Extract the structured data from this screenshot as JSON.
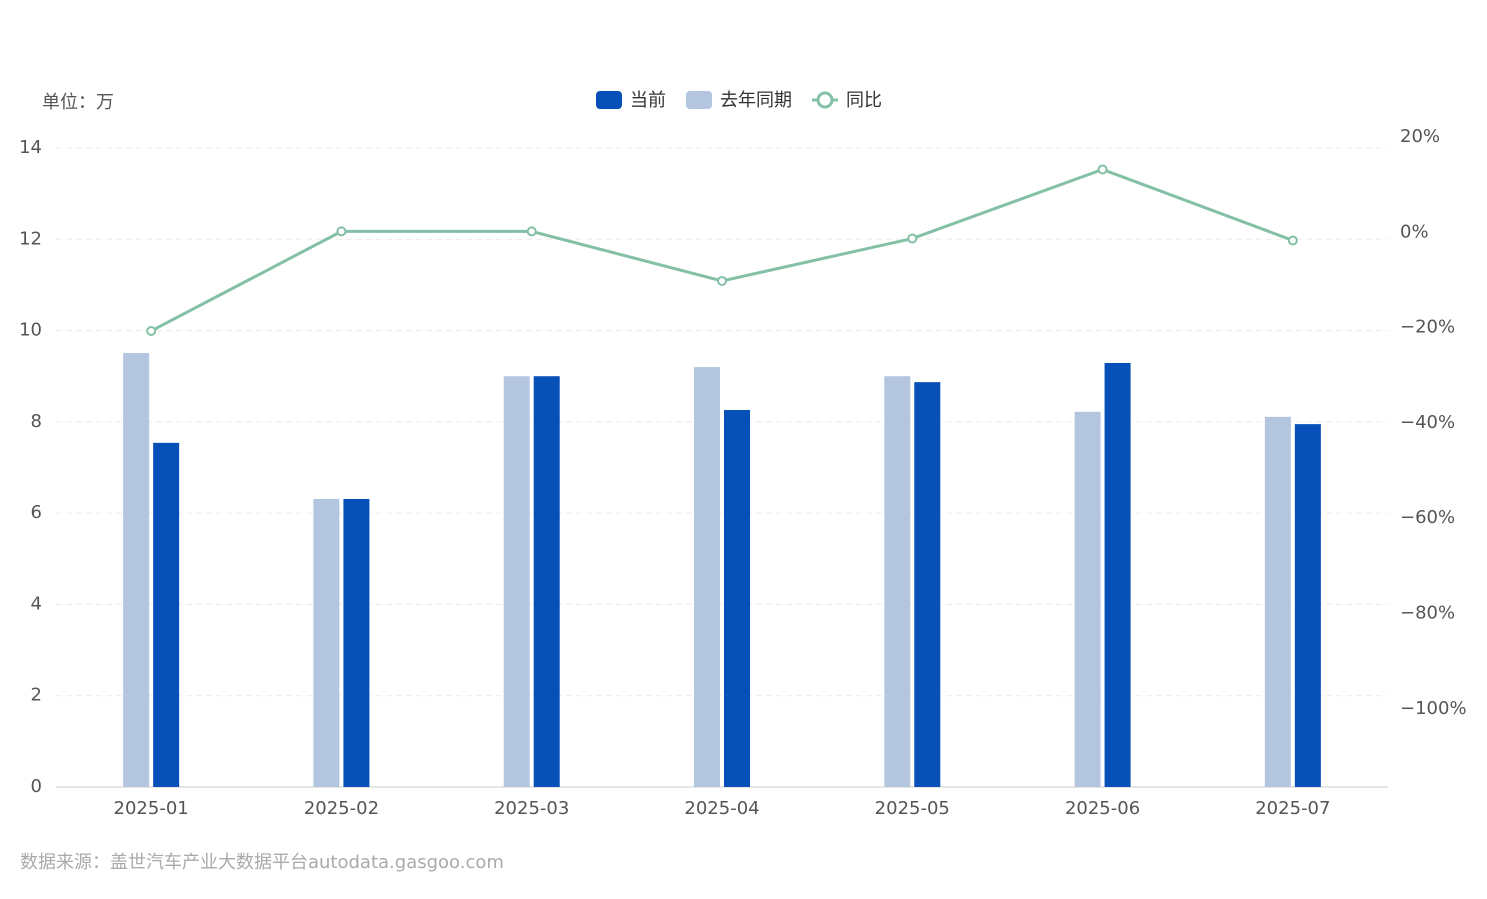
{
  "chart_data": {
    "type": "bar",
    "unit_label": "单位：万",
    "source": "数据来源：盖世汽车产业大数据平台autodata.gasgoo.com",
    "categories": [
      "2025-01",
      "2025-02",
      "2025-03",
      "2025-04",
      "2025-05",
      "2025-06",
      "2025-07"
    ],
    "series": [
      {
        "name": "当前",
        "color": "#0650b8",
        "type": "bar",
        "values": [
          7.54,
          6.31,
          9.0,
          8.26,
          8.87,
          9.29,
          7.95
        ]
      },
      {
        "name": "去年同期",
        "color": "#b4c5e0",
        "type": "bar",
        "values": [
          9.51,
          6.31,
          9.0,
          9.2,
          9.0,
          8.22,
          8.11
        ]
      },
      {
        "name": "同比",
        "color": "#84c0a5",
        "type": "line",
        "axis": "y2",
        "values": [
          -20.7,
          0.2,
          0.2,
          -10.2,
          -1.3,
          13.2,
          -1.7
        ]
      }
    ],
    "ylim": [
      0,
      14
    ],
    "yticks": [
      0,
      2,
      4,
      6,
      8,
      10,
      12,
      14
    ],
    "y2lim": [
      -116.4,
      17.7
    ],
    "y2ticks": [
      {
        "value": 20,
        "label": "20%"
      },
      {
        "value": 0,
        "label": "0%"
      },
      {
        "value": -20,
        "label": "−20%"
      },
      {
        "value": -40,
        "label": "−40%"
      },
      {
        "value": -60,
        "label": "−60%"
      },
      {
        "value": -80,
        "label": "−80%"
      },
      {
        "value": -100,
        "label": "−100%"
      }
    ],
    "grid": true
  }
}
